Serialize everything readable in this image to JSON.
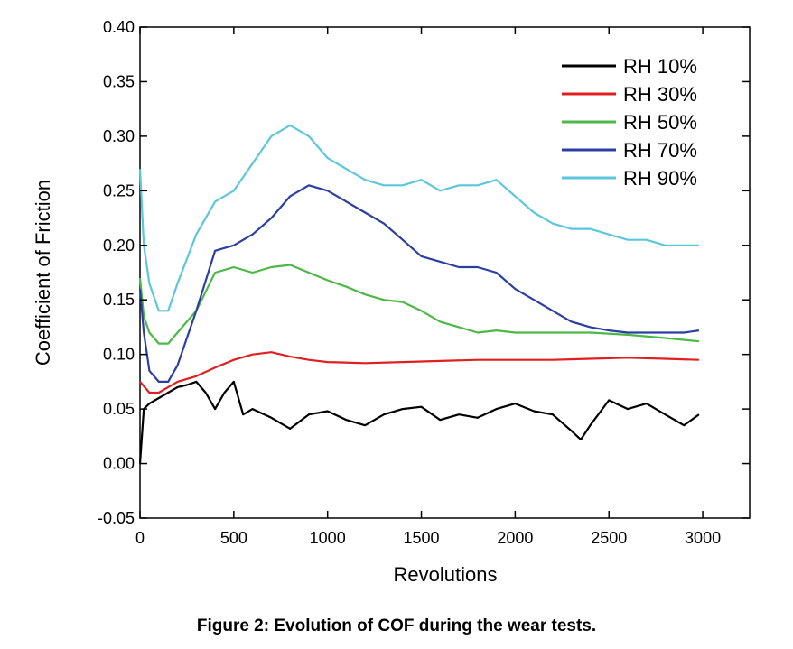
{
  "caption": "Figure 2: Evolution of COF during the wear tests.",
  "chart_data": {
    "type": "line",
    "title": "",
    "xlabel": "Revolutions",
    "ylabel": "Coefficient of Friction",
    "xlim": [
      0,
      3250
    ],
    "ylim": [
      -0.05,
      0.4
    ],
    "xticks": [
      "0",
      "500",
      "1000",
      "1500",
      "2000",
      "2500",
      "3000"
    ],
    "yticks": [
      "-0.05",
      "0.00",
      "0.05",
      "0.10",
      "0.15",
      "0.20",
      "0.25",
      "0.30",
      "0.35",
      "0.40"
    ],
    "xtick_values": [
      0,
      500,
      1000,
      1500,
      2000,
      2500,
      3000
    ],
    "ytick_values": [
      -0.05,
      0.0,
      0.05,
      0.1,
      0.15,
      0.2,
      0.25,
      0.3,
      0.35,
      0.4
    ],
    "grid": false,
    "legend_position": "top-right",
    "series": [
      {
        "name": "RH 10%",
        "color": "#000000",
        "x": [
          0,
          20,
          50,
          100,
          150,
          200,
          250,
          300,
          350,
          400,
          450,
          500,
          550,
          600,
          700,
          800,
          900,
          1000,
          1100,
          1200,
          1300,
          1400,
          1500,
          1600,
          1700,
          1800,
          1900,
          2000,
          2100,
          2200,
          2300,
          2350,
          2400,
          2500,
          2600,
          2700,
          2800,
          2900,
          2980
        ],
        "y": [
          0.0,
          0.05,
          0.055,
          0.06,
          0.065,
          0.07,
          0.072,
          0.075,
          0.065,
          0.05,
          0.065,
          0.075,
          0.045,
          0.05,
          0.042,
          0.032,
          0.045,
          0.048,
          0.04,
          0.035,
          0.045,
          0.05,
          0.052,
          0.04,
          0.045,
          0.042,
          0.05,
          0.055,
          0.048,
          0.045,
          0.03,
          0.022,
          0.035,
          0.058,
          0.05,
          0.055,
          0.045,
          0.035,
          0.045
        ]
      },
      {
        "name": "RH 30%",
        "color": "#e02020",
        "x": [
          0,
          50,
          100,
          150,
          200,
          300,
          400,
          500,
          600,
          700,
          800,
          900,
          1000,
          1200,
          1400,
          1600,
          1800,
          2000,
          2200,
          2400,
          2600,
          2800,
          2980
        ],
        "y": [
          0.075,
          0.065,
          0.065,
          0.07,
          0.075,
          0.08,
          0.088,
          0.095,
          0.1,
          0.102,
          0.098,
          0.095,
          0.093,
          0.092,
          0.093,
          0.094,
          0.095,
          0.095,
          0.095,
          0.096,
          0.097,
          0.096,
          0.095
        ]
      },
      {
        "name": "RH 50%",
        "color": "#4db848",
        "x": [
          0,
          20,
          50,
          100,
          150,
          200,
          300,
          400,
          500,
          600,
          700,
          800,
          900,
          1000,
          1100,
          1200,
          1300,
          1400,
          1500,
          1600,
          1700,
          1800,
          1900,
          2000,
          2200,
          2400,
          2600,
          2800,
          2980
        ],
        "y": [
          0.17,
          0.135,
          0.12,
          0.11,
          0.11,
          0.12,
          0.14,
          0.175,
          0.18,
          0.175,
          0.18,
          0.182,
          0.175,
          0.168,
          0.162,
          0.155,
          0.15,
          0.148,
          0.14,
          0.13,
          0.125,
          0.12,
          0.122,
          0.12,
          0.12,
          0.12,
          0.118,
          0.115,
          0.112
        ]
      },
      {
        "name": "RH 70%",
        "color": "#2b3fa3",
        "x": [
          0,
          20,
          50,
          100,
          150,
          200,
          300,
          400,
          500,
          600,
          700,
          800,
          900,
          1000,
          1100,
          1200,
          1300,
          1400,
          1500,
          1600,
          1700,
          1800,
          1900,
          2000,
          2100,
          2200,
          2300,
          2400,
          2500,
          2600,
          2700,
          2800,
          2900,
          2980
        ],
        "y": [
          0.16,
          0.12,
          0.085,
          0.075,
          0.075,
          0.09,
          0.14,
          0.195,
          0.2,
          0.21,
          0.225,
          0.245,
          0.255,
          0.25,
          0.24,
          0.23,
          0.22,
          0.205,
          0.19,
          0.185,
          0.18,
          0.18,
          0.175,
          0.16,
          0.15,
          0.14,
          0.13,
          0.125,
          0.122,
          0.12,
          0.12,
          0.12,
          0.12,
          0.122
        ]
      },
      {
        "name": "RH 90%",
        "color": "#5cc7dc",
        "x": [
          0,
          20,
          50,
          100,
          150,
          200,
          300,
          400,
          500,
          600,
          700,
          800,
          900,
          1000,
          1100,
          1200,
          1300,
          1400,
          1500,
          1600,
          1700,
          1800,
          1900,
          2000,
          2100,
          2200,
          2300,
          2400,
          2500,
          2600,
          2700,
          2800,
          2900,
          2980
        ],
        "y": [
          0.27,
          0.2,
          0.165,
          0.14,
          0.14,
          0.165,
          0.21,
          0.24,
          0.25,
          0.275,
          0.3,
          0.31,
          0.3,
          0.28,
          0.27,
          0.26,
          0.255,
          0.255,
          0.26,
          0.25,
          0.255,
          0.255,
          0.26,
          0.245,
          0.23,
          0.22,
          0.215,
          0.215,
          0.21,
          0.205,
          0.205,
          0.2,
          0.2,
          0.2
        ]
      }
    ]
  }
}
